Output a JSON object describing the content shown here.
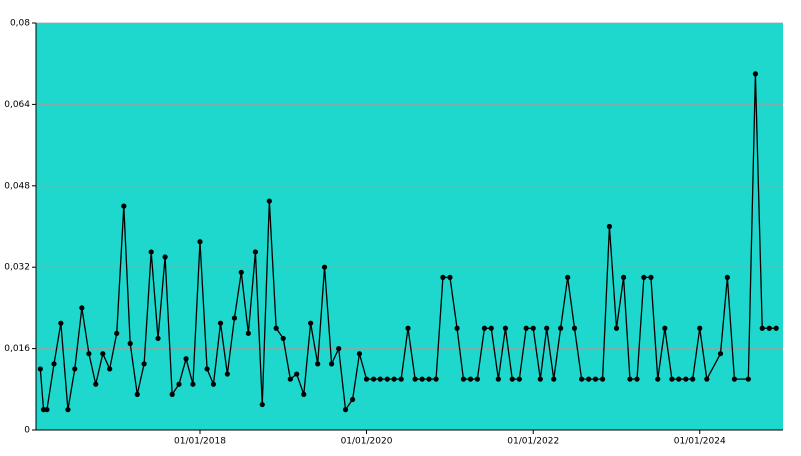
{
  "chart_data": {
    "type": "line",
    "x": [
      "01/02/2016",
      "15/02/2016",
      "01/03/2016",
      "01/04/2016",
      "01/05/2016",
      "01/06/2016",
      "01/07/2016",
      "01/08/2016",
      "01/09/2016",
      "01/10/2016",
      "01/11/2016",
      "01/12/2016",
      "01/01/2017",
      "01/02/2017",
      "01/03/2017",
      "01/04/2017",
      "01/05/2017",
      "01/06/2017",
      "01/07/2017",
      "01/08/2017",
      "01/09/2017",
      "01/10/2017",
      "01/11/2017",
      "01/12/2017",
      "01/01/2018",
      "01/02/2018",
      "01/03/2018",
      "01/04/2018",
      "01/05/2018",
      "01/06/2018",
      "01/07/2018",
      "01/08/2018",
      "01/09/2018",
      "01/10/2018",
      "01/11/2018",
      "01/12/2018",
      "01/01/2019",
      "01/02/2019",
      "01/03/2019",
      "01/04/2019",
      "01/05/2019",
      "01/06/2019",
      "01/07/2019",
      "01/08/2019",
      "01/09/2019",
      "01/10/2019",
      "01/11/2019",
      "01/12/2019",
      "01/01/2020",
      "01/02/2020",
      "01/03/2020",
      "01/04/2020",
      "01/05/2020",
      "01/06/2020",
      "01/07/2020",
      "01/08/2020",
      "01/09/2020",
      "01/10/2020",
      "01/11/2020",
      "01/12/2020",
      "01/01/2021",
      "01/02/2021",
      "01/03/2021",
      "01/04/2021",
      "01/05/2021",
      "01/06/2021",
      "01/07/2021",
      "01/08/2021",
      "01/09/2021",
      "01/10/2021",
      "01/11/2021",
      "01/12/2021",
      "01/01/2022",
      "01/02/2022",
      "01/03/2022",
      "01/04/2022",
      "01/05/2022",
      "01/06/2022",
      "01/07/2022",
      "01/08/2022",
      "01/09/2022",
      "01/10/2022",
      "01/11/2022",
      "01/12/2022",
      "01/01/2023",
      "01/02/2023",
      "01/03/2023",
      "01/04/2023",
      "01/05/2023",
      "01/06/2023",
      "01/07/2023",
      "01/08/2023",
      "01/09/2023",
      "01/10/2023",
      "01/11/2023",
      "01/12/2023",
      "01/01/2024",
      "01/02/2024",
      "01/04/2024",
      "01/05/2024",
      "01/06/2024",
      "01/08/2024",
      "01/09/2024",
      "01/10/2024",
      "01/11/2024",
      "01/12/2024"
    ],
    "values": [
      0.012,
      0.004,
      0.004,
      0.013,
      0.021,
      0.004,
      0.012,
      0.024,
      0.015,
      0.009,
      0.015,
      0.012,
      0.019,
      0.044,
      0.017,
      0.007,
      0.013,
      0.035,
      0.018,
      0.034,
      0.007,
      0.009,
      0.014,
      0.009,
      0.037,
      0.012,
      0.009,
      0.021,
      0.011,
      0.022,
      0.031,
      0.019,
      0.035,
      0.005,
      0.045,
      0.02,
      0.018,
      0.01,
      0.011,
      0.007,
      0.021,
      0.013,
      0.032,
      0.013,
      0.016,
      0.004,
      0.006,
      0.015,
      0.01,
      0.01,
      0.01,
      0.01,
      0.01,
      0.01,
      0.02,
      0.01,
      0.01,
      0.01,
      0.01,
      0.03,
      0.03,
      0.02,
      0.01,
      0.01,
      0.01,
      0.02,
      0.02,
      0.01,
      0.02,
      0.01,
      0.01,
      0.02,
      0.02,
      0.01,
      0.02,
      0.01,
      0.02,
      0.03,
      0.02,
      0.01,
      0.01,
      0.01,
      0.01,
      0.04,
      0.02,
      0.03,
      0.01,
      0.01,
      0.03,
      0.03,
      0.01,
      0.02,
      0.01,
      0.01,
      0.01,
      0.01,
      0.02,
      0.01,
      0.015,
      0.03,
      0.01,
      0.01,
      0.07,
      0.02,
      0.02,
      0.02
    ],
    "color": "#000000",
    "plot_background": "#1fd8cd",
    "grid": true,
    "xlim": [
      "13/01/2016",
      "31/12/2024"
    ],
    "xticks": [
      "01/01/2018",
      "01/01/2020",
      "01/01/2022",
      "01/01/2024"
    ],
    "ylim": [
      0,
      0.08
    ],
    "yticks": [
      0,
      {
        "value": 0.016,
        "label": "0,016"
      },
      {
        "value": 0.032,
        "label": "0,032"
      },
      {
        "value": 0.048,
        "label": "0,048"
      },
      {
        "value": 0.064,
        "label": "0,064"
      },
      {
        "value": 0.08,
        "label": "0,08"
      }
    ]
  }
}
